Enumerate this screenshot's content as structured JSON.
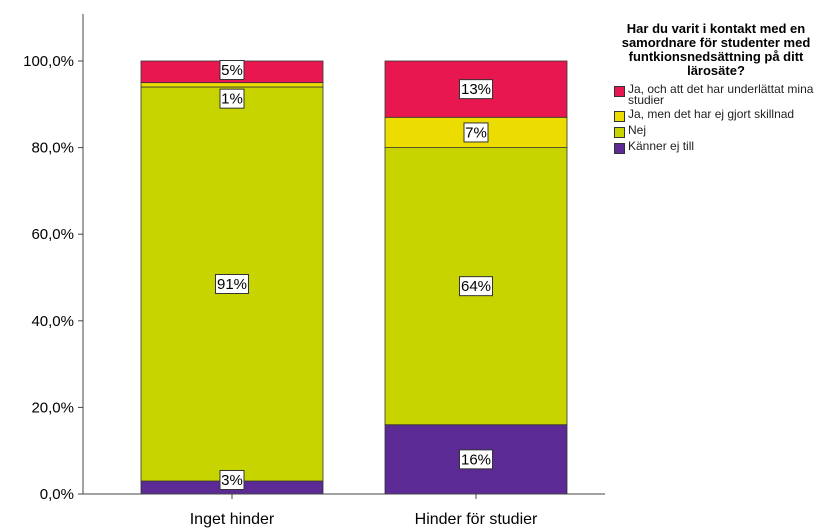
{
  "chart_data": {
    "type": "bar",
    "stacked": true,
    "categories": [
      "Inget hinder",
      "Hinder för studier"
    ],
    "y_tick_labels": [
      "0,0%",
      "20,0%",
      "40,0%",
      "60,0%",
      "80,0%",
      "100,0%"
    ],
    "ylim": [
      0,
      100
    ],
    "legend_title": "Har du varit i kontakt med en samordnare för studenter med funtkionsnedsättning på ditt lärosäte?",
    "legend_position": "top-right",
    "series": [
      {
        "name": "Känner ej till",
        "color": "#5b2a94",
        "values": [
          3,
          16
        ],
        "labels": [
          "3%",
          "16%"
        ]
      },
      {
        "name": "Nej",
        "color": "#c8d400",
        "values": [
          91,
          64
        ],
        "labels": [
          "91%",
          "64%"
        ]
      },
      {
        "name": "Ja, men det har ej gjort skillnad",
        "color": "#ecdc00",
        "values": [
          1,
          7
        ],
        "labels": [
          "1%",
          "7%"
        ]
      },
      {
        "name": "Ja, och att det har underlättat mina studier",
        "color": "#e8174f",
        "values": [
          5,
          13
        ],
        "labels": [
          "5%",
          "13%"
        ]
      }
    ],
    "legend_order": [
      3,
      2,
      1,
      0
    ]
  }
}
